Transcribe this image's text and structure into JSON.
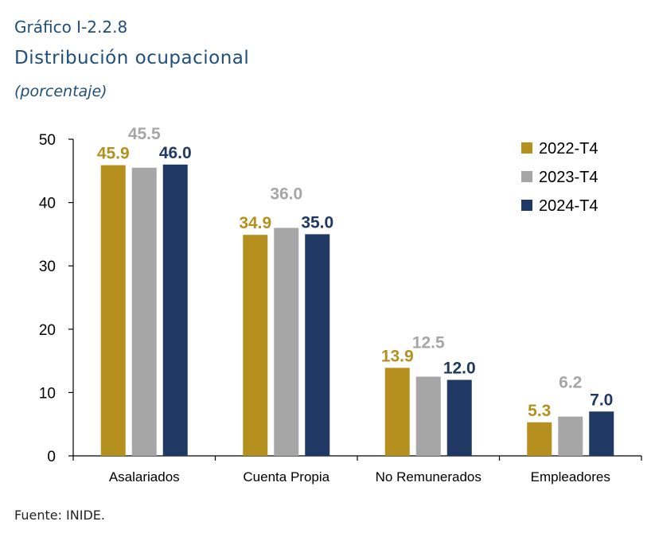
{
  "header": {
    "kicker": "Gráfico I-2.2.8",
    "title": "Distribución ocupacional",
    "subtitle": "(porcentaje)"
  },
  "footer": {
    "source": "Fuente: INIDE."
  },
  "chart_data": {
    "type": "bar",
    "title": "Distribución ocupacional",
    "ylabel": "",
    "xlabel": "",
    "ylim": [
      0,
      50
    ],
    "yticks": [
      0,
      10,
      20,
      30,
      40,
      50
    ],
    "grid": false,
    "legend_position": "top-right",
    "categories": [
      "Asalariados",
      "Cuenta Propia",
      "No Remunerados",
      "Empleadores"
    ],
    "series": [
      {
        "name": "2022-T4",
        "color": "#b5901f",
        "values": [
          45.9,
          34.9,
          13.9,
          5.3
        ],
        "labels": [
          "45.9",
          "34.9",
          "13.9",
          "5.3"
        ]
      },
      {
        "name": "2023-T4",
        "color": "#a6a6a6",
        "values": [
          45.5,
          36.0,
          12.5,
          6.2
        ],
        "labels": [
          "45.5",
          "36.0",
          "12.5",
          "6.2"
        ]
      },
      {
        "name": "2024-T4",
        "color": "#1f3864",
        "values": [
          46.0,
          35.0,
          12.0,
          7.0
        ],
        "labels": [
          "46.0",
          "35.0",
          "12.0",
          "7.0"
        ]
      }
    ]
  }
}
